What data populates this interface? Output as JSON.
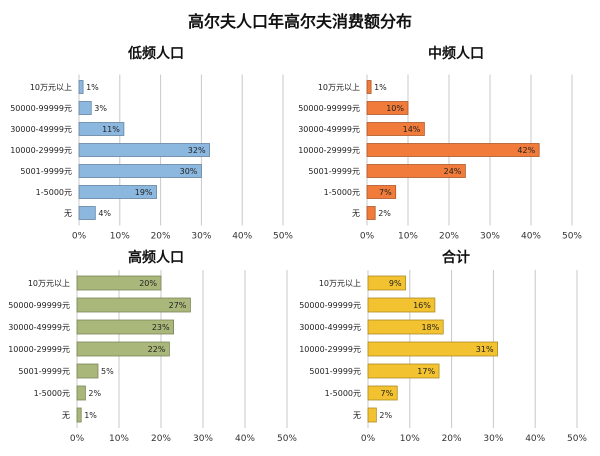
{
  "title": "高尔夫人口年高尔夫消费额分布",
  "chart_data": [
    {
      "type": "bar",
      "title": "低频人口",
      "categories": [
        "10万元以上",
        "50000-99999元",
        "30000-49999元",
        "10000-29999元",
        "5001-9999元",
        "1-5000元",
        "无"
      ],
      "values": [
        1,
        3,
        11,
        32,
        30,
        19,
        4
      ],
      "value_labels": [
        "1%",
        "3%",
        "11%",
        "32%",
        "30%",
        "19%",
        "4%"
      ],
      "x_ticks": [
        "0%",
        "10%",
        "20%",
        "30%",
        "40%",
        "50%"
      ],
      "xlim": [
        0,
        50
      ],
      "color": "#8cb8e0",
      "grid": true
    },
    {
      "type": "bar",
      "title": "中频人口",
      "categories": [
        "10万元以上",
        "50000-99999元",
        "30000-49999元",
        "10000-29999元",
        "5001-9999元",
        "1-5000元",
        "无"
      ],
      "values": [
        1,
        10,
        14,
        42,
        24,
        7,
        2
      ],
      "value_labels": [
        "1%",
        "10%",
        "14%",
        "42%",
        "24%",
        "7%",
        "2%"
      ],
      "x_ticks": [
        "0%",
        "10%",
        "20%",
        "30%",
        "40%",
        "50%"
      ],
      "xlim": [
        0,
        50
      ],
      "color": "#f07b3a",
      "grid": true
    },
    {
      "type": "bar",
      "title": "高频人口",
      "categories": [
        "10万元以上",
        "50000-99999元",
        "30000-49999元",
        "10000-29999元",
        "5001-9999元",
        "1-5000元",
        "无"
      ],
      "values": [
        20,
        27,
        23,
        22,
        5,
        2,
        1
      ],
      "value_labels": [
        "20%",
        "27%",
        "23%",
        "22%",
        "5%",
        "2%",
        "1%"
      ],
      "x_ticks": [
        "0%",
        "10%",
        "20%",
        "30%",
        "40%",
        "50%"
      ],
      "xlim": [
        0,
        50
      ],
      "color": "#a9b87a",
      "grid": true
    },
    {
      "type": "bar",
      "title": "合计",
      "categories": [
        "10万元以上",
        "50000-99999元",
        "30000-49999元",
        "10000-29999元",
        "5001-9999元",
        "1-5000元",
        "无"
      ],
      "values": [
        9,
        16,
        18,
        31,
        17,
        7,
        2
      ],
      "value_labels": [
        "9%",
        "16%",
        "18%",
        "31%",
        "17%",
        "7%",
        "2%"
      ],
      "x_ticks": [
        "0%",
        "10%",
        "20%",
        "30%",
        "40%",
        "50%"
      ],
      "xlim": [
        0,
        50
      ],
      "color": "#f2c230",
      "grid": true
    }
  ]
}
